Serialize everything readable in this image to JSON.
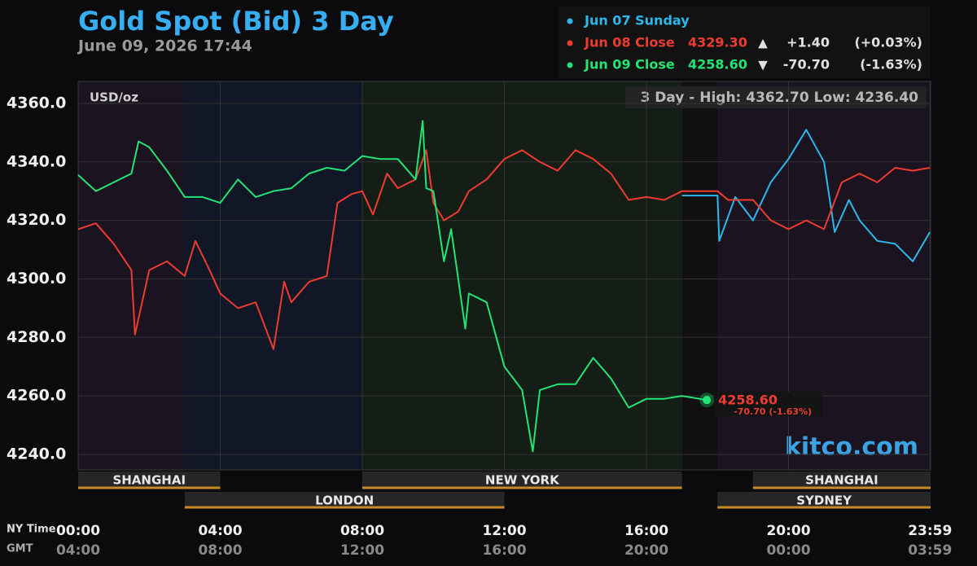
{
  "chart_data": {
    "type": "line",
    "title": "Gold Spot (Bid) 3 Day",
    "subtitle": "June 09, 2026 17:44",
    "unit_label": "USD/oz",
    "high_low": "3 Day - High: 4362.70  Low: 4236.40",
    "watermark": "kitco.com",
    "x_axis_label": "NY Time",
    "x2_axis_label": "GMT",
    "xlim": [
      0,
      24
    ],
    "xticks": [
      {
        "value": 0,
        "label": "00:00"
      },
      {
        "value": 4,
        "label": "04:00"
      },
      {
        "value": 8,
        "label": "08:00"
      },
      {
        "value": 12,
        "label": "12:00"
      },
      {
        "value": 16,
        "label": "16:00"
      },
      {
        "value": 20,
        "label": "20:00"
      },
      {
        "value": 23.983,
        "label": "23:59"
      }
    ],
    "x2ticks": [
      "04:00",
      "08:00",
      "12:00",
      "16:00",
      "20:00",
      "00:00",
      "03:59"
    ],
    "ylim": [
      4234.7,
      4367.5
    ],
    "yticks": [
      {
        "value": 4240,
        "label": "4240.0"
      },
      {
        "value": 4260,
        "label": "4260.0"
      },
      {
        "value": 4280,
        "label": "4280.0"
      },
      {
        "value": 4300,
        "label": "4300.0"
      },
      {
        "value": 4320,
        "label": "4320.0"
      },
      {
        "value": 4340,
        "label": "4340.0"
      },
      {
        "value": 4360,
        "label": "4360.0"
      }
    ],
    "grid": true,
    "series": [
      {
        "name": "Jun 07 Sunday",
        "color": "#2bb8ec",
        "x": [
          17,
          18,
          18.05,
          18.5,
          19,
          19.5,
          20,
          20.5,
          21,
          21.3,
          21.7,
          22,
          22.5,
          23,
          23.5,
          23.98
        ],
        "values": [
          4328.5,
          4328.5,
          4313,
          4328,
          4320,
          4333,
          4341,
          4351,
          4340,
          4316,
          4327,
          4320,
          4313,
          4312,
          4306,
          4316
        ]
      },
      {
        "name": "Jun 08 Close",
        "color": "#ee3b30",
        "close": "4329.30",
        "arrow": "▲",
        "change": "+1.40",
        "change_pct": "(+0.03%)",
        "x": [
          0,
          0.5,
          1,
          1.5,
          1.6,
          2,
          2.5,
          3,
          3.3,
          3.7,
          4,
          4.5,
          5,
          5.5,
          5.8,
          6,
          6.5,
          7,
          7.3,
          7.7,
          8,
          8.3,
          8.7,
          9,
          9.5,
          9.8,
          10,
          10.3,
          10.7,
          11,
          11.5,
          12,
          12.5,
          13,
          13.5,
          14,
          14.5,
          15,
          15.5,
          16,
          16.5,
          17,
          18,
          18.3,
          19,
          19.5,
          20,
          20.5,
          21,
          21.5,
          22,
          22.5,
          23,
          23.5,
          23.98
        ],
        "values": [
          4317,
          4319,
          4312,
          4303,
          4281,
          4303,
          4306,
          4301,
          4313,
          4303,
          4295,
          4290,
          4292,
          4276,
          4299,
          4292,
          4299,
          4301,
          4326,
          4329,
          4330,
          4322,
          4336,
          4331,
          4334,
          4344,
          4326,
          4320,
          4323,
          4330,
          4334,
          4341,
          4344,
          4340,
          4337,
          4344,
          4341,
          4336,
          4327,
          4328,
          4327,
          4330,
          4330,
          4327,
          4327,
          4320,
          4317,
          4320,
          4317,
          4333,
          4336,
          4333,
          4338,
          4337,
          4338
        ]
      },
      {
        "name": "Jun 09 Close",
        "color": "#22e474",
        "close": "4258.60",
        "arrow": "▼",
        "change": "-70.70",
        "change_pct": "(-1.63%)",
        "x": [
          0,
          0.5,
          1,
          1.5,
          1.7,
          2,
          2.5,
          3,
          3.5,
          4,
          4.5,
          5,
          5.5,
          6,
          6.5,
          7,
          7.5,
          8,
          8.5,
          9,
          9.5,
          9.7,
          9.8,
          10,
          10.3,
          10.5,
          10.9,
          11,
          11.5,
          12,
          12.5,
          12.8,
          13,
          13.5,
          14,
          14.5,
          15,
          15.5,
          16,
          16.5,
          17,
          17.7
        ],
        "values": [
          4335.5,
          4330,
          4333,
          4336,
          4347,
          4345,
          4337,
          4328,
          4328,
          4326,
          4334,
          4328,
          4330,
          4331,
          4336,
          4338,
          4337,
          4342,
          4341,
          4341,
          4334,
          4354,
          4331,
          4330,
          4306,
          4317,
          4283,
          4295,
          4292,
          4270,
          4262,
          4241,
          4262,
          4264,
          4264,
          4273,
          4266,
          4256,
          4259,
          4259,
          4260,
          4258.6
        ]
      }
    ],
    "end_label": {
      "price": "4258.60",
      "change": "-70.70 (-1.63%)"
    },
    "sessions": [
      {
        "name": "SHANGHAI",
        "start": 0,
        "end": 4,
        "row": 1
      },
      {
        "name": "NEW YORK",
        "start": 8,
        "end": 17,
        "row": 1
      },
      {
        "name": "SHANGHAI",
        "start": 19,
        "end": 24,
        "row": 1
      },
      {
        "name": "LONDON",
        "start": 3,
        "end": 12,
        "row": 2
      },
      {
        "name": "SYDNEY",
        "start": 18,
        "end": 24,
        "row": 2
      }
    ]
  }
}
